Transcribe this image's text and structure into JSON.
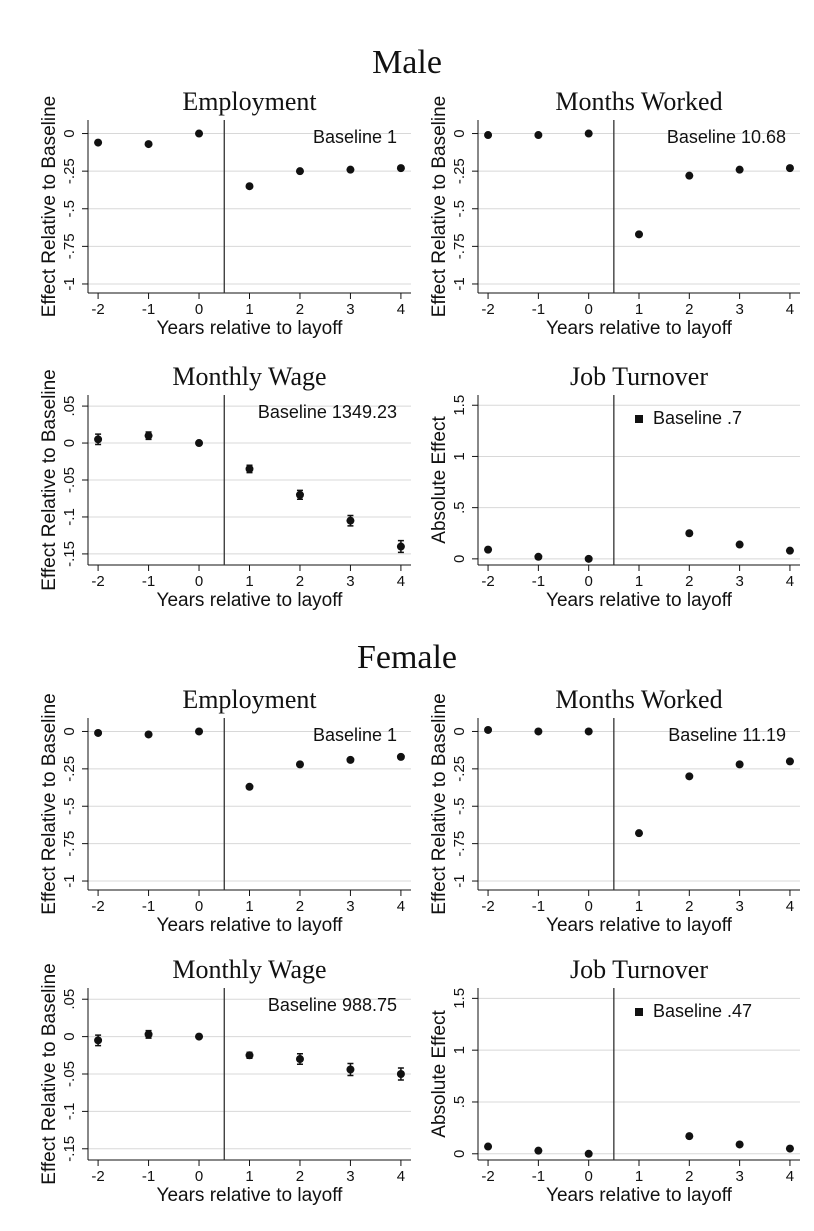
{
  "section_titles": [
    "Male",
    "Female"
  ],
  "chart_data": [
    {
      "type": "scatter",
      "title": "Employment",
      "xlabel": "Years relative to layoff",
      "ylabel": "Effect Relative to Baseline",
      "annotation": "Baseline 1",
      "x": [
        -2,
        -1,
        0,
        1,
        2,
        3,
        4
      ],
      "values": [
        -0.06,
        -0.07,
        0,
        -0.35,
        -0.25,
        -0.24,
        -0.23
      ],
      "xlim": [
        -2.2,
        4.2
      ],
      "ylim": [
        -1.06,
        0.09
      ],
      "xticks": [
        -2,
        -1,
        0,
        1,
        2,
        3,
        4
      ],
      "yticks": [
        0,
        {
          "value": -0.25,
          "label": "-.25"
        },
        {
          "value": -0.5,
          "label": "-.5"
        },
        {
          "value": -0.75,
          "label": "-.75"
        },
        -1
      ],
      "vline": 0.5,
      "grid": true,
      "color": "#111111"
    },
    {
      "type": "scatter",
      "title": "Months Worked",
      "xlabel": "Years relative to layoff",
      "ylabel": "Effect Relative to Baseline",
      "annotation": "Baseline 10.68",
      "x": [
        -2,
        -1,
        0,
        1,
        2,
        3,
        4
      ],
      "values": [
        -0.01,
        -0.01,
        0,
        -0.67,
        -0.28,
        -0.24,
        -0.23
      ],
      "xlim": [
        -2.2,
        4.2
      ],
      "ylim": [
        -1.06,
        0.09
      ],
      "xticks": [
        -2,
        -1,
        0,
        1,
        2,
        3,
        4
      ],
      "yticks": [
        0,
        {
          "value": -0.25,
          "label": "-.25"
        },
        {
          "value": -0.5,
          "label": "-.5"
        },
        {
          "value": -0.75,
          "label": "-.75"
        },
        -1
      ],
      "vline": 0.5,
      "grid": true,
      "color": "#111111"
    },
    {
      "type": "scatter",
      "title": "Monthly Wage",
      "xlabel": "Years relative to layoff",
      "ylabel": "Effect Relative to Baseline",
      "annotation": "Baseline 1349.23",
      "x": [
        -2,
        -1,
        0,
        1,
        2,
        3,
        4
      ],
      "values": [
        0.005,
        0.01,
        0,
        -0.035,
        -0.07,
        -0.105,
        -0.14
      ],
      "errors": [
        0.007,
        0.005,
        0.002,
        0.005,
        0.006,
        0.007,
        0.008
      ],
      "xlim": [
        -2.2,
        4.2
      ],
      "ylim": [
        -0.165,
        0.065
      ],
      "xticks": [
        -2,
        -1,
        0,
        1,
        2,
        3,
        4
      ],
      "yticks": [
        {
          "value": 0.05,
          "label": ".05"
        },
        0,
        {
          "value": -0.05,
          "label": "-.05"
        },
        {
          "value": -0.1,
          "label": "-.1"
        },
        {
          "value": -0.15,
          "label": "-.15"
        }
      ],
      "vline": 0.5,
      "grid": true,
      "color": "#111111"
    },
    {
      "type": "scatter",
      "title": "Job Turnover",
      "xlabel": "Years relative to layoff",
      "ylabel": "Absolute Effect",
      "annotation": "Baseline .7",
      "x": [
        -2,
        -1,
        0,
        1,
        2,
        3,
        4
      ],
      "values": [
        0.09,
        0.02,
        0,
        null,
        0.25,
        0.14,
        0.08
      ],
      "errors": [
        0.01,
        0.01,
        0.005,
        null,
        0.015,
        0.015,
        0.01
      ],
      "xlim": [
        -2.2,
        4.2
      ],
      "ylim": [
        -0.06,
        1.6
      ],
      "xticks": [
        -2,
        -1,
        0,
        1,
        2,
        3,
        4
      ],
      "yticks": [
        0,
        {
          "value": 0.5,
          "label": ".5"
        },
        1,
        1.5
      ],
      "vline": 0.5,
      "grid": true,
      "color": "#111111"
    },
    {
      "type": "scatter",
      "title": "Employment",
      "xlabel": "Years relative to layoff",
      "ylabel": "Effect Relative to Baseline",
      "annotation": "Baseline 1",
      "x": [
        -2,
        -1,
        0,
        1,
        2,
        3,
        4
      ],
      "values": [
        -0.01,
        -0.02,
        0,
        -0.37,
        -0.22,
        -0.19,
        -0.17
      ],
      "xlim": [
        -2.2,
        4.2
      ],
      "ylim": [
        -1.06,
        0.09
      ],
      "xticks": [
        -2,
        -1,
        0,
        1,
        2,
        3,
        4
      ],
      "yticks": [
        0,
        {
          "value": -0.25,
          "label": "-.25"
        },
        {
          "value": -0.5,
          "label": "-.5"
        },
        {
          "value": -0.75,
          "label": "-.75"
        },
        -1
      ],
      "vline": 0.5,
      "grid": true,
      "color": "#111111"
    },
    {
      "type": "scatter",
      "title": "Months Worked",
      "xlabel": "Years relative to layoff",
      "ylabel": "Effect Relative to Baseline",
      "annotation": "Baseline 11.19",
      "x": [
        -2,
        -1,
        0,
        1,
        2,
        3,
        4
      ],
      "values": [
        0.01,
        0,
        0,
        -0.68,
        -0.3,
        -0.22,
        -0.2
      ],
      "xlim": [
        -2.2,
        4.2
      ],
      "ylim": [
        -1.06,
        0.09
      ],
      "xticks": [
        -2,
        -1,
        0,
        1,
        2,
        3,
        4
      ],
      "yticks": [
        0,
        {
          "value": -0.25,
          "label": "-.25"
        },
        {
          "value": -0.5,
          "label": "-.5"
        },
        {
          "value": -0.75,
          "label": "-.75"
        },
        -1
      ],
      "vline": 0.5,
      "grid": true,
      "color": "#111111"
    },
    {
      "type": "scatter",
      "title": "Monthly Wage",
      "xlabel": "Years relative to layoff",
      "ylabel": "Effect Relative to Baseline",
      "annotation": "Baseline 988.75",
      "x": [
        -2,
        -1,
        0,
        1,
        2,
        3,
        4
      ],
      "values": [
        -0.005,
        0.003,
        0,
        -0.025,
        -0.03,
        -0.044,
        -0.05
      ],
      "errors": [
        0.007,
        0.005,
        0.002,
        0.004,
        0.007,
        0.008,
        0.008
      ],
      "xlim": [
        -2.2,
        4.2
      ],
      "ylim": [
        -0.165,
        0.065
      ],
      "xticks": [
        -2,
        -1,
        0,
        1,
        2,
        3,
        4
      ],
      "yticks": [
        {
          "value": 0.05,
          "label": ".05"
        },
        0,
        {
          "value": -0.05,
          "label": "-.05"
        },
        {
          "value": -0.1,
          "label": "-.1"
        },
        {
          "value": -0.15,
          "label": "-.15"
        }
      ],
      "vline": 0.5,
      "grid": true,
      "color": "#111111"
    },
    {
      "type": "scatter",
      "title": "Job Turnover",
      "xlabel": "Years relative to layoff",
      "ylabel": "Absolute Effect",
      "annotation": "Baseline .47",
      "x": [
        -2,
        -1,
        0,
        1,
        2,
        3,
        4
      ],
      "values": [
        0.07,
        0.03,
        0,
        null,
        0.17,
        0.09,
        0.05
      ],
      "errors": [
        0.015,
        0.01,
        0.005,
        null,
        0.02,
        0.015,
        0.01
      ],
      "xlim": [
        -2.2,
        4.2
      ],
      "ylim": [
        -0.06,
        1.6
      ],
      "xticks": [
        -2,
        -1,
        0,
        1,
        2,
        3,
        4
      ],
      "yticks": [
        0,
        {
          "value": 0.5,
          "label": ".5"
        },
        1,
        1.5
      ],
      "vline": 0.5,
      "grid": true,
      "color": "#111111"
    }
  ]
}
